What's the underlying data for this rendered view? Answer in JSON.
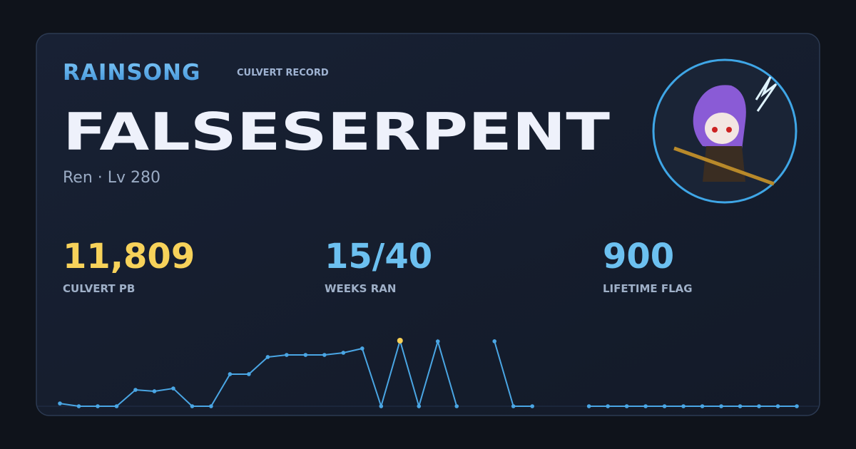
{
  "header": {
    "brand": "RAINSONG",
    "subtitle": "CULVERT RECORD",
    "name": "FALSESERPENT",
    "class_level": "Ren · Lv 280"
  },
  "stats": [
    {
      "value": "11,809",
      "label": "CULVERT PB"
    },
    {
      "value": "15/40",
      "label": "WEEKS RAN"
    },
    {
      "value": "900",
      "label": "LIFETIME FLAG"
    }
  ],
  "chart_data": {
    "type": "line",
    "values": [
      500,
      0,
      0,
      0,
      2950,
      2700,
      3200,
      0,
      0,
      5780,
      5780,
      8860,
      9240,
      9240,
      9240,
      9630,
      10400,
      0,
      11809,
      0,
      11680,
      0,
      null,
      11700,
      0,
      0,
      null,
      null,
      0,
      0,
      0,
      0,
      0,
      0,
      0,
      0,
      0,
      0,
      0,
      0
    ],
    "color": "#4aa6e4",
    "highlight_color": "#f7cf55"
  }
}
